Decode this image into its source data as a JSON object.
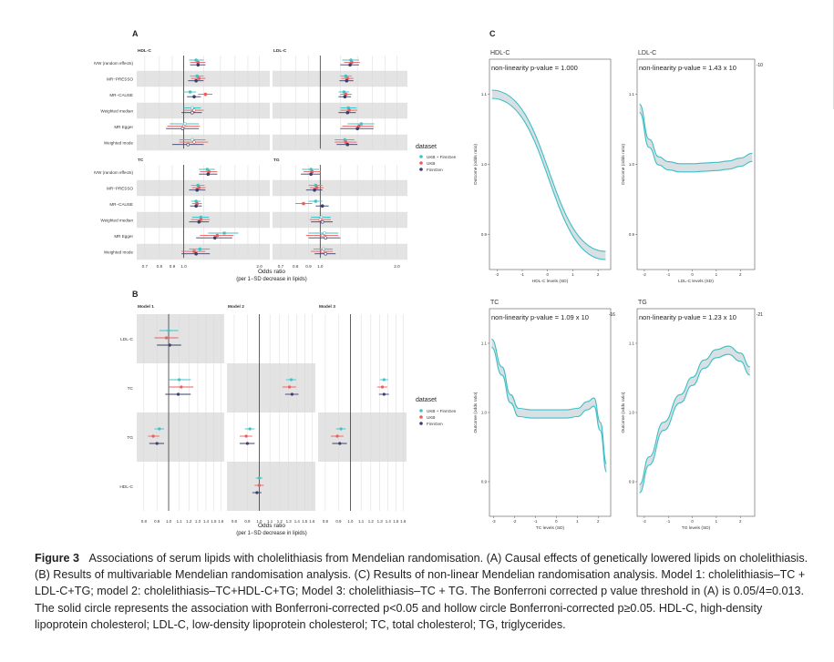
{
  "panel_letters": {
    "a": "A",
    "b": "B",
    "c": "C"
  },
  "colors": {
    "ukb_finngen": "#3cc5c9",
    "ukb": "#ee5c5c",
    "finngen": "#3b3f6b",
    "band": "#e3e3e3",
    "line": "#3bbfc4",
    "ribbon": "#c9d3d8"
  },
  "legend": {
    "title": "dataset",
    "items": [
      "UKB + FinnGen",
      "UKB",
      "FinnGen"
    ]
  },
  "panelA": {
    "methods": [
      "IVW (random effects)",
      "MR−PRESSO",
      "MR−CAUSE",
      "Weighted median",
      "MR Egger",
      "Weighted mode"
    ],
    "facets": [
      "HDL-C",
      "LDL-C",
      "TC",
      "TG"
    ],
    "ticks": [
      "0.7",
      "0.8",
      "0.9",
      "1.0",
      "2.0"
    ],
    "axis_title": "Odds ratio",
    "axis_subtitle": "(per 1−SD decrease in lipids)"
  },
  "panelB": {
    "facets": [
      "Model 1",
      "Model 2",
      "Model 3"
    ],
    "rows": [
      "LDL-C",
      "TC",
      "TG",
      "HDL-C"
    ],
    "ticks": [
      "0.8",
      "0.9",
      "1.0",
      "1.1",
      "1.2",
      "1.3",
      "1.4",
      "1.5",
      "1.6"
    ],
    "axis_title": "Odds ratio",
    "axis_subtitle": "(per 1−SD decrease in lipids)"
  },
  "panelC": {
    "y_label": "Outcome (odds ratio)",
    "plots": [
      {
        "name": "HDL-C",
        "annotation": "non-linearity p-value = 1.000",
        "exp": "",
        "xlabel": "HDL-C levels (SD)",
        "xticks": [
          "-2",
          "-1",
          "0",
          "1",
          "2"
        ],
        "yticks": [
          "1.1",
          "1.0",
          "0.9"
        ]
      },
      {
        "name": "LDL-C",
        "annotation": "non-linearity p-value = 1.43 x 10",
        "exp": "-10",
        "xlabel": "LDL-C levels (SD)",
        "xticks": [
          "-2",
          "-1",
          "0",
          "1",
          "2"
        ],
        "yticks": [
          "1.1",
          "1.0",
          "0.9"
        ]
      },
      {
        "name": "TC",
        "annotation": "non-linearity p-value = 1.09 x 10",
        "exp": "-16",
        "xlabel": "TC levels (SD)",
        "xticks": [
          "-3",
          "-2",
          "-1",
          "0",
          "1",
          "2"
        ],
        "yticks": [
          "1.1",
          "1.0",
          "0.9"
        ]
      },
      {
        "name": "TG",
        "annotation": "non-linearity p-value = 1.23 x 10",
        "exp": "-21",
        "xlabel": "TG levels (SD)",
        "xticks": [
          "-2",
          "-1",
          "0",
          "1",
          "2"
        ],
        "yticks": [
          "1.1",
          "1.0",
          "0.9"
        ]
      }
    ]
  },
  "caption": {
    "label": "Figure 3",
    "text": "Associations of serum lipids with cholelithiasis from Mendelian randomisation. (A) Causal effects of genetically lowered lipids on cholelithiasis. (B) Results of multivariable Mendelian randomisation analysis. (C) Results of non-linear Mendelian randomisation analysis. Model 1: cholelithiasis–TC + LDL-C+TG; model 2: cholelithiasis–TC+HDL-C+TG; Model 3: cholelithiasis–TC + TG. The Bonferroni corrected p value threshold in (A) is 0.05/4=0.013. The solid circle represents the association with Bonferroni-corrected p<0.05 and hollow circle Bonferroni-corrected p≥0.05. HDL-C, high-density lipoprotein cholesterol; LDL-C, low-density lipoprotein cholesterol; TC, total cholesterol; TG, triglycerides."
  },
  "chart_data": [
    {
      "type": "forest",
      "panel": "A",
      "facets": [
        "HDL-C",
        "LDL-C",
        "TC",
        "TG"
      ],
      "methods": [
        "IVW (random effects)",
        "MR-PRESSO",
        "MR-CAUSE",
        "Weighted median",
        "MR Egger",
        "Weighted mode"
      ],
      "xscale": "log",
      "xlim": [
        0.65,
        2.2
      ],
      "series": [
        {
          "name": "UKB + FinnGen",
          "facet": "HDL-C",
          "values": [
            [
              1.12,
              1.05,
              1.2
            ],
            [
              1.13,
              1.06,
              1.2
            ],
            [
              1.06,
              1.0,
              1.12
            ],
            [
              1.08,
              1.0,
              1.17
            ],
            [
              1.01,
              0.88,
              1.15
            ],
            [
              1.08,
              0.96,
              1.22
            ]
          ]
        },
        {
          "name": "UKB",
          "facet": "HDL-C",
          "values": [
            [
              1.14,
              1.06,
              1.22
            ],
            [
              1.15,
              1.07,
              1.22
            ],
            [
              1.22,
              1.14,
              1.3
            ],
            [
              1.1,
              1.0,
              1.2
            ],
            [
              1.0,
              0.86,
              1.16
            ],
            [
              1.1,
              0.96,
              1.25
            ]
          ]
        },
        {
          "name": "FinnGen",
          "facet": "HDL-C",
          "values": [
            [
              1.14,
              1.06,
              1.22
            ],
            [
              1.12,
              1.04,
              1.2
            ],
            [
              1.1,
              1.03,
              1.17
            ],
            [
              1.08,
              0.98,
              1.18
            ],
            [
              0.99,
              0.85,
              1.15
            ],
            [
              1.04,
              0.9,
              1.2
            ]
          ]
        },
        {
          "name": "UKB + FinnGen",
          "facet": "LDL-C",
          "values": [
            [
              1.32,
              1.22,
              1.42
            ],
            [
              1.26,
              1.2,
              1.33
            ],
            [
              1.24,
              1.18,
              1.3
            ],
            [
              1.29,
              1.2,
              1.39
            ],
            [
              1.45,
              1.28,
              1.63
            ],
            [
              1.25,
              1.14,
              1.36
            ]
          ]
        },
        {
          "name": "UKB",
          "facet": "LDL-C",
          "values": [
            [
              1.33,
              1.24,
              1.43
            ],
            [
              1.28,
              1.21,
              1.35
            ],
            [
              1.26,
              1.2,
              1.33
            ],
            [
              1.3,
              1.2,
              1.4
            ],
            [
              1.42,
              1.22,
              1.62
            ],
            [
              1.26,
              1.14,
              1.39
            ]
          ]
        },
        {
          "name": "FinnGen",
          "facet": "LDL-C",
          "values": [
            [
              1.31,
              1.2,
              1.42
            ],
            [
              1.27,
              1.19,
              1.35
            ],
            [
              1.25,
              1.18,
              1.32
            ],
            [
              1.28,
              1.18,
              1.38
            ],
            [
              1.4,
              1.2,
              1.62
            ],
            [
              1.28,
              1.16,
              1.4
            ]
          ]
        },
        {
          "name": "UKB + FinnGen",
          "facet": "TC",
          "values": [
            [
              1.24,
              1.15,
              1.33
            ],
            [
              1.14,
              1.07,
              1.21
            ],
            [
              1.12,
              1.07,
              1.17
            ],
            [
              1.17,
              1.08,
              1.26
            ],
            [
              1.45,
              1.25,
              1.65
            ],
            [
              1.16,
              1.05,
              1.27
            ]
          ]
        },
        {
          "name": "UKB",
          "facet": "TC",
          "values": [
            [
              1.26,
              1.16,
              1.36
            ],
            [
              1.15,
              1.08,
              1.22
            ],
            [
              1.13,
              1.08,
              1.18
            ],
            [
              1.17,
              1.07,
              1.27
            ],
            [
              1.36,
              1.16,
              1.58
            ],
            [
              1.1,
              0.98,
              1.22
            ]
          ]
        },
        {
          "name": "FinnGen",
          "facet": "TC",
          "values": [
            [
              1.25,
              1.15,
              1.36
            ],
            [
              1.13,
              1.05,
              1.22
            ],
            [
              1.12,
              1.06,
              1.18
            ],
            [
              1.15,
              1.05,
              1.26
            ],
            [
              1.33,
              1.12,
              1.56
            ],
            [
              1.12,
              0.98,
              1.27
            ]
          ]
        },
        {
          "name": "UKB + FinnGen",
          "facet": "TG",
          "values": [
            [
              0.92,
              0.85,
              0.99
            ],
            [
              0.96,
              0.9,
              1.02
            ],
            [
              0.96,
              0.9,
              1.02
            ],
            [
              1.01,
              0.92,
              1.1
            ],
            [
              1.04,
              0.9,
              1.18
            ],
            [
              1.03,
              0.94,
              1.12
            ]
          ]
        },
        {
          "name": "UKB",
          "facet": "TG",
          "values": [
            [
              0.93,
              0.86,
              1.0
            ],
            [
              0.97,
              0.91,
              1.03
            ],
            [
              0.86,
              0.8,
              0.93
            ],
            [
              1.0,
              0.91,
              1.1
            ],
            [
              1.02,
              0.88,
              1.18
            ],
            [
              1.02,
              0.92,
              1.12
            ]
          ]
        },
        {
          "name": "FinnGen",
          "facet": "TG",
          "values": [
            [
              0.92,
              0.84,
              1.0
            ],
            [
              0.95,
              0.88,
              1.02
            ],
            [
              1.02,
              0.96,
              1.08
            ],
            [
              1.02,
              0.92,
              1.12
            ],
            [
              1.05,
              0.9,
              1.2
            ],
            [
              1.05,
              0.95,
              1.15
            ]
          ]
        }
      ]
    },
    {
      "type": "forest",
      "panel": "B",
      "facets": [
        "Model 1",
        "Model 2",
        "Model 3"
      ],
      "rows": [
        "LDL-C",
        "TC",
        "TG",
        "HDL-C"
      ],
      "xscale": "log",
      "xlim": [
        0.75,
        1.65
      ],
      "series": [
        {
          "name": "UKB + FinnGen",
          "model": "Model 1",
          "values": {
            "LDL-C": [
              1.0,
              0.92,
              1.09
            ],
            "TC": [
              1.1,
              1.0,
              1.22
            ],
            "TG": [
              0.92,
              0.88,
              0.96
            ]
          }
        },
        {
          "name": "UKB",
          "model": "Model 1",
          "values": {
            "LDL-C": [
              0.98,
              0.88,
              1.09
            ],
            "TC": [
              1.12,
              1.0,
              1.25
            ],
            "TG": [
              0.87,
              0.83,
              0.92
            ]
          }
        },
        {
          "name": "FinnGen",
          "model": "Model 1",
          "values": {
            "LDL-C": [
              1.01,
              0.9,
              1.12
            ],
            "TC": [
              1.09,
              0.97,
              1.22
            ],
            "TG": [
              0.9,
              0.84,
              0.96
            ]
          }
        },
        {
          "name": "UKB + FinnGen",
          "model": "Model 2",
          "values": {
            "TC": [
              1.33,
              1.27,
              1.39
            ],
            "TG": [
              0.92,
              0.88,
              0.96
            ],
            "HDL-C": [
              1.0,
              0.97,
              1.03
            ]
          }
        },
        {
          "name": "UKB",
          "model": "Model 2",
          "values": {
            "TC": [
              1.31,
              1.23,
              1.39
            ],
            "TG": [
              0.89,
              0.84,
              0.94
            ],
            "HDL-C": [
              1.0,
              0.96,
              1.04
            ]
          }
        },
        {
          "name": "FinnGen",
          "model": "Model 2",
          "values": {
            "TC": [
              1.34,
              1.26,
              1.42
            ],
            "TG": [
              0.9,
              0.84,
              0.96
            ],
            "HDL-C": [
              0.98,
              0.94,
              1.02
            ]
          }
        },
        {
          "name": "UKB + FinnGen",
          "model": "Model 3",
          "values": {
            "TC": [
              1.35,
              1.3,
              1.4
            ],
            "TG": [
              0.92,
              0.88,
              0.96
            ]
          }
        },
        {
          "name": "UKB",
          "model": "Model 3",
          "values": {
            "TC": [
              1.33,
              1.27,
              1.39
            ],
            "TG": [
              0.89,
              0.84,
              0.94
            ]
          }
        },
        {
          "name": "FinnGen",
          "model": "Model 3",
          "values": {
            "TC": [
              1.35,
              1.29,
              1.41
            ],
            "TG": [
              0.91,
              0.85,
              0.97
            ]
          }
        }
      ]
    },
    {
      "type": "line",
      "panel": "C",
      "ylabel": "Outcome (odds ratio)",
      "series": [
        {
          "name": "HDL-C",
          "x": [
            -2.2,
            2.3
          ],
          "y": [
            1.1,
            0.87
          ],
          "xlim": [
            -2.3,
            2.5
          ],
          "ylim": [
            0.85,
            1.15
          ]
        },
        {
          "name": "LDL-C",
          "x": [
            -2.2,
            -1.8,
            -1.4,
            -1,
            -0.5,
            0,
            0.5,
            1,
            1.5,
            2,
            2.5
          ],
          "y": [
            1.08,
            1.03,
            1.005,
            0.998,
            0.995,
            0.995,
            0.996,
            0.997,
            0.999,
            1.003,
            1.01
          ],
          "xlim": [
            -2.3,
            2.6
          ],
          "ylim": [
            0.85,
            1.15
          ]
        },
        {
          "name": "TC",
          "x": [
            -3.1,
            -2.6,
            -2.2,
            -1.8,
            -1.2,
            -0.5,
            0.5,
            1,
            1.5,
            1.8,
            2.1,
            2.4
          ],
          "y": [
            1.1,
            1.06,
            1.02,
            1.0,
            0.998,
            0.998,
            0.998,
            1.0,
            1.01,
            1.015,
            0.98,
            0.92
          ],
          "xlim": [
            -3.2,
            2.6
          ],
          "ylim": [
            0.85,
            1.15
          ]
        },
        {
          "name": "TG",
          "x": [
            -2.2,
            -1.8,
            -1.2,
            -0.5,
            0,
            0.5,
            1,
            1.5,
            2,
            2.4
          ],
          "y": [
            0.89,
            0.93,
            0.98,
            1.02,
            1.045,
            1.07,
            1.085,
            1.09,
            1.08,
            1.06
          ],
          "xlim": [
            -2.3,
            2.6
          ],
          "ylim": [
            0.85,
            1.15
          ]
        }
      ]
    }
  ]
}
